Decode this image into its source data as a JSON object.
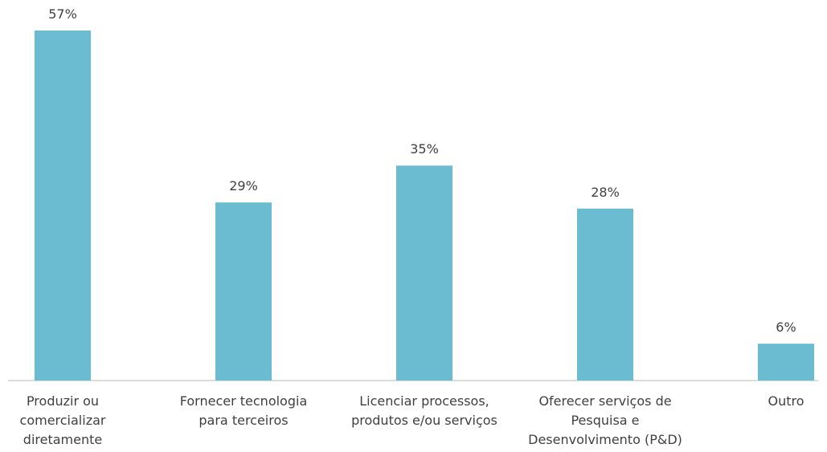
{
  "chart_data": {
    "type": "bar",
    "categories": [
      "Produzir ou\ncomercializar\ndiretamente",
      "Fornecer tecnologia\npara terceiros",
      "Licenciar processos,\nprodutos e/ou serviços",
      "Oferecer serviços de\nPesquisa e\nDesenvolvimento (P&D)",
      "Outro"
    ],
    "values": [
      57,
      29,
      35,
      28,
      6
    ],
    "value_labels": [
      "57%",
      "29%",
      "35%",
      "28%",
      "6%"
    ],
    "color": "#6bbcd1"
  }
}
